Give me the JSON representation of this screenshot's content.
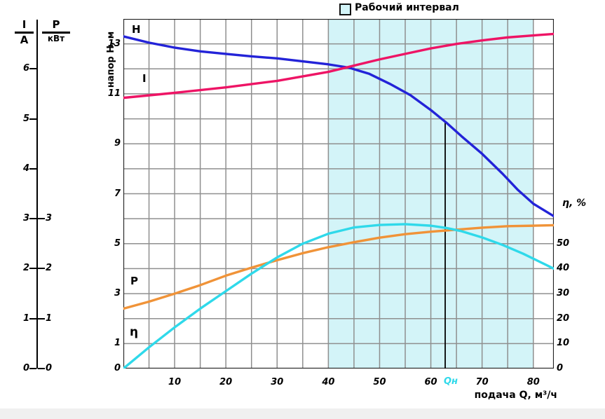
{
  "colors": {
    "shade": "#d3f4f8",
    "grid": "#8f8f8f",
    "axis": "#222222",
    "qn": "#2fd9ea",
    "band": "#f0f0f0"
  },
  "legend": {
    "label": "Рабочий интервал"
  },
  "left_axis": {
    "current_symbol": "I",
    "current_unit": "А",
    "power_symbol": "P",
    "power_unit": "кВт",
    "i_ticks": [
      6,
      5,
      4,
      3,
      2,
      1,
      0
    ],
    "p_ticks": [
      3,
      2,
      1,
      0
    ]
  },
  "y_axis": {
    "title": "напор H, м",
    "ticks": [
      13,
      11,
      9,
      7,
      5,
      3,
      1,
      0
    ]
  },
  "right_axis": {
    "title": "η, %",
    "ticks": [
      50,
      40,
      30,
      20,
      10,
      0
    ]
  },
  "x_axis": {
    "title": "подача Q, м³/ч",
    "ticks": [
      10,
      20,
      30,
      40,
      50,
      60,
      70,
      80
    ],
    "qn_label": "Qн"
  },
  "curve_labels": {
    "h": "H",
    "i": "I",
    "p": "P",
    "eta": "η"
  },
  "chart_data": {
    "type": "line",
    "xlabel": "подача Q, м³/ч",
    "ylabel_left": "напор H, м",
    "ylabel_right": "η, %",
    "aux_axis_left_ruler": "I (А) 0–6, P (кВт) 0–3",
    "x_range": [
      0,
      84
    ],
    "x_step": 5,
    "grid_rows": 14,
    "grid_on": true,
    "legend_position": "top",
    "working_interval": {
      "label": "Рабочий интервал",
      "q_from": 40,
      "q_to": 80
    },
    "nominal_flow": {
      "label": "Qн",
      "q": 62.8,
      "line_top_H": 9.85
    },
    "series": [
      {
        "id": "H",
        "name": "H",
        "unit": "м",
        "color": "#2323d8",
        "grid_units_per_unit": 1,
        "points": [
          [
            0,
            13.3
          ],
          [
            5,
            13.05
          ],
          [
            10,
            12.85
          ],
          [
            15,
            12.7
          ],
          [
            20,
            12.6
          ],
          [
            25,
            12.5
          ],
          [
            30,
            12.42
          ],
          [
            35,
            12.3
          ],
          [
            40,
            12.18
          ],
          [
            44,
            12.05
          ],
          [
            48,
            11.8
          ],
          [
            52,
            11.4
          ],
          [
            56,
            10.95
          ],
          [
            60,
            10.35
          ],
          [
            63,
            9.85
          ],
          [
            66,
            9.3
          ],
          [
            70,
            8.6
          ],
          [
            74,
            7.8
          ],
          [
            77,
            7.15
          ],
          [
            80,
            6.6
          ],
          [
            84,
            6.1
          ]
        ]
      },
      {
        "id": "I",
        "name": "I",
        "unit": "А",
        "color": "#ee1465",
        "grid_units_per_unit": 2,
        "points": [
          [
            0,
            5.42
          ],
          [
            10,
            5.52
          ],
          [
            20,
            5.63
          ],
          [
            30,
            5.76
          ],
          [
            40,
            5.94
          ],
          [
            44,
            6.04
          ],
          [
            50,
            6.19
          ],
          [
            55,
            6.3
          ],
          [
            60,
            6.41
          ],
          [
            65,
            6.5
          ],
          [
            70,
            6.57
          ],
          [
            75,
            6.63
          ],
          [
            80,
            6.67
          ],
          [
            84,
            6.7
          ]
        ]
      },
      {
        "id": "P",
        "name": "P",
        "unit": "кВт",
        "color": "#f09338",
        "grid_units_per_unit": 2,
        "points": [
          [
            0,
            1.2
          ],
          [
            5,
            1.34
          ],
          [
            10,
            1.5
          ],
          [
            15,
            1.67
          ],
          [
            20,
            1.86
          ],
          [
            25,
            2.02
          ],
          [
            30,
            2.17
          ],
          [
            35,
            2.31
          ],
          [
            40,
            2.43
          ],
          [
            45,
            2.53
          ],
          [
            50,
            2.62
          ],
          [
            55,
            2.69
          ],
          [
            60,
            2.74
          ],
          [
            65,
            2.78
          ],
          [
            70,
            2.82
          ],
          [
            75,
            2.85
          ],
          [
            80,
            2.86
          ],
          [
            84,
            2.87
          ]
        ]
      },
      {
        "id": "eta",
        "name": "η",
        "unit": "%",
        "color": "#2fd9ea",
        "grid_units_per_unit": 0.1,
        "points": [
          [
            0,
            0
          ],
          [
            5,
            8.5
          ],
          [
            10,
            16.5
          ],
          [
            15,
            24
          ],
          [
            20,
            31
          ],
          [
            25,
            38
          ],
          [
            30,
            44.5
          ],
          [
            35,
            50
          ],
          [
            40,
            54
          ],
          [
            45,
            56.5
          ],
          [
            50,
            57.5
          ],
          [
            55,
            57.8
          ],
          [
            60,
            57.2
          ],
          [
            63,
            56.3
          ],
          [
            66,
            55
          ],
          [
            70,
            52.5
          ],
          [
            74,
            49.5
          ],
          [
            78,
            46
          ],
          [
            81,
            43
          ],
          [
            84,
            40
          ]
        ]
      }
    ]
  }
}
